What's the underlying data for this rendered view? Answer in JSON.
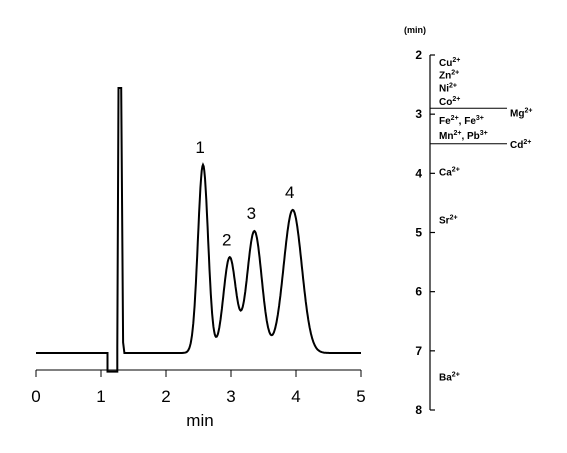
{
  "chart_data": [
    {
      "type": "line",
      "xlabel": "min",
      "ylabel": "",
      "xlim": [
        0,
        5
      ],
      "xticks": [
        "0",
        "1",
        "2",
        "3",
        "4",
        "5"
      ],
      "grid": false,
      "legend": "none",
      "line_color": "#000000",
      "baseline_level": 0.0,
      "system_peak": {
        "rise_time": 1.27,
        "fall_time": 1.31,
        "height": 1.0,
        "dip_start": 1.1,
        "dip_end": 1.25,
        "dip_depth": -0.07
      },
      "peaks": [
        {
          "label": "1",
          "time": 2.57,
          "height": 0.71
        },
        {
          "label": "2",
          "time": 2.98,
          "height": 0.36
        },
        {
          "label": "3",
          "time": 3.36,
          "height": 0.46
        },
        {
          "label": "4",
          "time": 3.95,
          "height": 0.54
        }
      ]
    },
    {
      "type": "scatter",
      "title": "(min)",
      "orientation": "vertical",
      "ylim": [
        2,
        8
      ],
      "yticks": [
        "2",
        "3",
        "4",
        "5",
        "6",
        "7",
        "8"
      ],
      "ions": [
        {
          "base": "Cu",
          "charge": "2+",
          "rt": 2.12,
          "side": "left"
        },
        {
          "base": "Zn",
          "charge": "2+",
          "rt": 2.33,
          "side": "left"
        },
        {
          "base": "Ni",
          "charge": "2+",
          "rt": 2.55,
          "side": "left"
        },
        {
          "base": "Co",
          "charge": "2+",
          "rt": 2.78,
          "side": "left"
        },
        {
          "base": "Fe",
          "charge": "2+",
          "base2": ", Fe",
          "charge2": "3+",
          "rt": 3.1,
          "side": "left"
        },
        {
          "base": "Mn",
          "charge": "2+",
          "base2": ", Pb",
          "charge2": "3+",
          "rt": 3.35,
          "side": "left"
        },
        {
          "base": "Mg",
          "charge": "2+",
          "rt": 2.97,
          "side": "right"
        },
        {
          "base": "Cd",
          "charge": "2+",
          "rt": 3.5,
          "side": "right"
        },
        {
          "base": "Ca",
          "charge": "2+",
          "rt": 3.97,
          "side": "left"
        },
        {
          "base": "Sr",
          "charge": "2+",
          "rt": 4.78,
          "side": "left"
        },
        {
          "base": "Ba",
          "charge": "2+",
          "rt": 7.43,
          "side": "left"
        }
      ],
      "separators": [
        2.9,
        3.5
      ]
    }
  ]
}
